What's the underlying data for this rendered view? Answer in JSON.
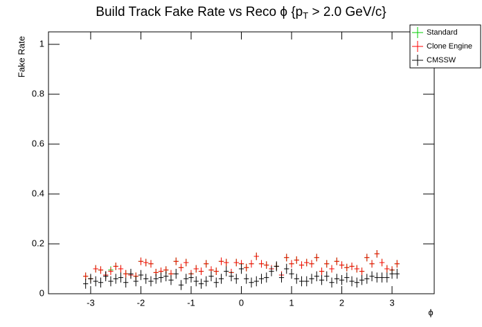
{
  "chart_data": {
    "type": "errorbar",
    "title": "Build Track Fake Rate vs Reco ϕ {p",
    "title_subscript": "T",
    "title_end": " > 2.0 GeV/c}",
    "x_label": "ϕ",
    "y_label": "Fake Rate",
    "xlim": [
      -3.84,
      3.84
    ],
    "ylim": [
      0,
      1.05
    ],
    "xticks": [
      -3,
      -2,
      -1,
      0,
      1,
      2,
      3
    ],
    "yticks": [
      0,
      0.2,
      0.4,
      0.6,
      0.8,
      1
    ],
    "x_bin_width": 0.1,
    "legend_position": "top-right",
    "x": [
      -3.1,
      -3.0,
      -2.9,
      -2.8,
      -2.7,
      -2.6,
      -2.5,
      -2.4,
      -2.3,
      -2.2,
      -2.1,
      -2.0,
      -1.9,
      -1.8,
      -1.7,
      -1.6,
      -1.5,
      -1.4,
      -1.3,
      -1.2,
      -1.1,
      -1.0,
      -0.9,
      -0.8,
      -0.7,
      -0.6,
      -0.5,
      -0.4,
      -0.3,
      -0.2,
      -0.1,
      0.0,
      0.1,
      0.2,
      0.3,
      0.4,
      0.5,
      0.6,
      0.7,
      0.8,
      0.9,
      1.0,
      1.1,
      1.2,
      1.3,
      1.4,
      1.5,
      1.6,
      1.7,
      1.8,
      1.9,
      2.0,
      2.1,
      2.2,
      2.3,
      2.4,
      2.5,
      2.6,
      2.7,
      2.8,
      2.9,
      3.0,
      3.1
    ],
    "series": [
      {
        "name": "Standard",
        "color": "#00cc00",
        "values": [
          0.07,
          0.06,
          0.1,
          0.095,
          0.075,
          0.095,
          0.11,
          0.1,
          0.08,
          0.075,
          0.07,
          0.13,
          0.125,
          0.12,
          0.085,
          0.09,
          0.095,
          0.08,
          0.13,
          0.105,
          0.125,
          0.08,
          0.1,
          0.09,
          0.12,
          0.095,
          0.09,
          0.13,
          0.125,
          0.085,
          0.125,
          0.12,
          0.105,
          0.12,
          0.15,
          0.12,
          0.115,
          0.1,
          0.11,
          0.075,
          0.145,
          0.12,
          0.135,
          0.115,
          0.125,
          0.12,
          0.145,
          0.09,
          0.12,
          0.1,
          0.13,
          0.115,
          0.105,
          0.11,
          0.1,
          0.09,
          0.145,
          0.12,
          0.16,
          0.125,
          0.1,
          0.095,
          0.12
        ],
        "errors": [
          0.015,
          0.015,
          0.015,
          0.015,
          0.015,
          0.015,
          0.015,
          0.015,
          0.015,
          0.015,
          0.015,
          0.015,
          0.015,
          0.015,
          0.015,
          0.015,
          0.015,
          0.015,
          0.015,
          0.015,
          0.015,
          0.015,
          0.015,
          0.015,
          0.015,
          0.015,
          0.015,
          0.015,
          0.015,
          0.015,
          0.015,
          0.015,
          0.015,
          0.015,
          0.015,
          0.015,
          0.015,
          0.015,
          0.015,
          0.015,
          0.015,
          0.015,
          0.015,
          0.015,
          0.015,
          0.015,
          0.015,
          0.015,
          0.015,
          0.015,
          0.015,
          0.015,
          0.015,
          0.015,
          0.015,
          0.015,
          0.015,
          0.015,
          0.015,
          0.015,
          0.015,
          0.015,
          0.015
        ]
      },
      {
        "name": "Clone Engine",
        "color": "#ff0000",
        "values": [
          0.07,
          0.06,
          0.1,
          0.095,
          0.075,
          0.09,
          0.11,
          0.1,
          0.08,
          0.075,
          0.07,
          0.13,
          0.125,
          0.12,
          0.085,
          0.09,
          0.095,
          0.08,
          0.13,
          0.105,
          0.125,
          0.08,
          0.1,
          0.09,
          0.12,
          0.095,
          0.09,
          0.13,
          0.125,
          0.085,
          0.125,
          0.12,
          0.105,
          0.12,
          0.15,
          0.12,
          0.115,
          0.1,
          0.11,
          0.075,
          0.145,
          0.12,
          0.135,
          0.115,
          0.125,
          0.12,
          0.145,
          0.09,
          0.12,
          0.1,
          0.13,
          0.115,
          0.105,
          0.11,
          0.1,
          0.09,
          0.145,
          0.12,
          0.16,
          0.125,
          0.1,
          0.095,
          0.12
        ],
        "errors": [
          0.015,
          0.015,
          0.015,
          0.015,
          0.015,
          0.015,
          0.015,
          0.015,
          0.015,
          0.015,
          0.015,
          0.015,
          0.015,
          0.015,
          0.015,
          0.015,
          0.015,
          0.015,
          0.015,
          0.015,
          0.015,
          0.015,
          0.015,
          0.015,
          0.015,
          0.015,
          0.015,
          0.015,
          0.015,
          0.015,
          0.015,
          0.015,
          0.015,
          0.015,
          0.015,
          0.015,
          0.015,
          0.015,
          0.015,
          0.015,
          0.015,
          0.015,
          0.015,
          0.015,
          0.015,
          0.015,
          0.015,
          0.015,
          0.015,
          0.015,
          0.015,
          0.015,
          0.015,
          0.015,
          0.015,
          0.015,
          0.015,
          0.015,
          0.015,
          0.015,
          0.015,
          0.015,
          0.015
        ]
      },
      {
        "name": "CMSSW",
        "color": "#000000",
        "values": [
          0.04,
          0.06,
          0.05,
          0.045,
          0.07,
          0.05,
          0.06,
          0.065,
          0.045,
          0.08,
          0.05,
          0.075,
          0.06,
          0.05,
          0.06,
          0.065,
          0.07,
          0.055,
          0.08,
          0.035,
          0.06,
          0.065,
          0.05,
          0.04,
          0.05,
          0.07,
          0.045,
          0.06,
          0.09,
          0.07,
          0.06,
          0.1,
          0.06,
          0.045,
          0.05,
          0.06,
          0.065,
          0.09,
          0.11,
          0.065,
          0.1,
          0.08,
          0.06,
          0.05,
          0.05,
          0.06,
          0.07,
          0.055,
          0.07,
          0.045,
          0.06,
          0.055,
          0.065,
          0.05,
          0.045,
          0.055,
          0.06,
          0.07,
          0.065,
          0.065,
          0.065,
          0.08,
          0.08
        ],
        "errors": [
          0.02,
          0.02,
          0.02,
          0.02,
          0.02,
          0.02,
          0.02,
          0.02,
          0.02,
          0.02,
          0.02,
          0.02,
          0.02,
          0.02,
          0.02,
          0.02,
          0.02,
          0.02,
          0.02,
          0.02,
          0.02,
          0.02,
          0.02,
          0.02,
          0.02,
          0.02,
          0.02,
          0.02,
          0.02,
          0.02,
          0.02,
          0.02,
          0.02,
          0.02,
          0.02,
          0.02,
          0.02,
          0.02,
          0.02,
          0.02,
          0.02,
          0.02,
          0.02,
          0.02,
          0.02,
          0.02,
          0.02,
          0.02,
          0.02,
          0.02,
          0.02,
          0.02,
          0.02,
          0.02,
          0.02,
          0.02,
          0.02,
          0.02,
          0.02,
          0.02,
          0.02,
          0.02,
          0.02
        ]
      }
    ]
  }
}
